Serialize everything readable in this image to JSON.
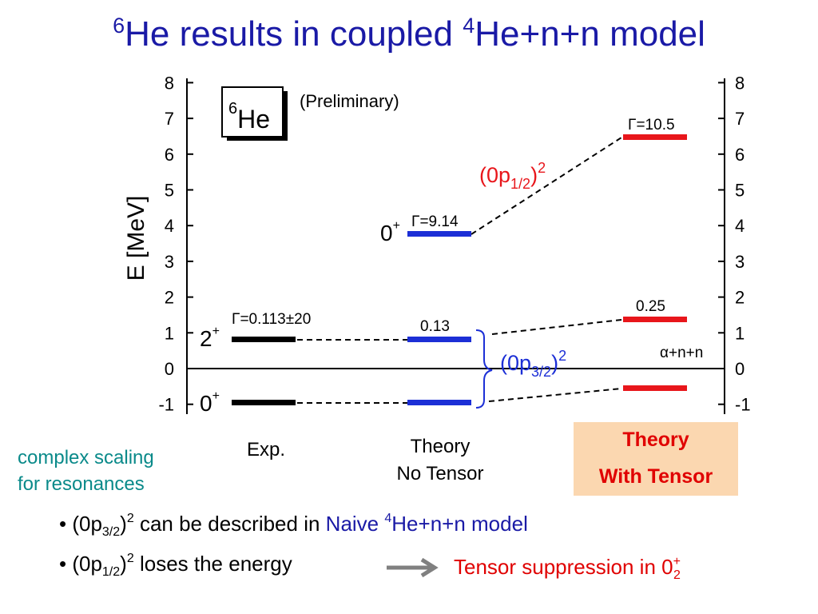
{
  "slide": {
    "title_sup_1": "6",
    "title_part_1": "He results in coupled ",
    "title_sup_2": "4",
    "title_part_2": "He+n+n model"
  },
  "axis": {
    "ylabel": "E [MeV]",
    "ticks": [
      "-1",
      "0",
      "1",
      "2",
      "3",
      "4",
      "5",
      "6",
      "7",
      "8"
    ],
    "threshold_label": "α+n+n"
  },
  "nucleus_box": {
    "mass": "6",
    "symbol": "He"
  },
  "preliminary": "(Preliminary)",
  "columns": {
    "exp": "Exp.",
    "no_tensor_1": "Theory",
    "no_tensor_2": "No Tensor",
    "with_tensor_1": "Theory",
    "with_tensor_2": "With Tensor"
  },
  "levels": {
    "exp_2plus": {
      "label": "2",
      "label_sup": "+",
      "width_label": "Γ=0.113±20"
    },
    "exp_0plus": {
      "label": "0",
      "label_sup": "+"
    },
    "nt_0plus2": {
      "label": "0",
      "label_sup": "+",
      "width_label": "Γ=9.14"
    },
    "nt_2plus": {
      "width_label": "0.13"
    },
    "wt_0plus2": {
      "width_label": "Γ=10.5"
    },
    "wt_2plus": {
      "width_label": "0.25"
    }
  },
  "annotations": {
    "p12_base": "(0p",
    "p12_sub": "1/2",
    "p12_close": ")",
    "p12_sup": "2",
    "p32_base": "(0p",
    "p32_sub": "3/2",
    "p32_close": ")",
    "p32_sup": "2"
  },
  "note": {
    "line1": "complex scaling",
    "line2": "for resonances"
  },
  "bullets": {
    "b1_pre": "• (0p",
    "b1_sub": "3/2",
    "b1_mid": ")",
    "b1_sup": "2",
    "b1_text": " can be described in ",
    "b1_blue": "Naive ",
    "b1_blue_sup": "4",
    "b1_blue_end": "He+n+n model",
    "b2_pre": "• (0p",
    "b2_sub": "1/2",
    "b2_mid": ")",
    "b2_sup": "2",
    "b2_text": " loses the energy",
    "b2_result": "Tensor suppression in 0",
    "b2_result_sup": "+",
    "b2_result_sub": "2"
  },
  "colors": {
    "title": "#1a1aa6",
    "exp": "#000000",
    "no_tensor": "#1c2fd6",
    "with_tensor": "#e8161b",
    "note": "#0a8a8a",
    "box_bg": "#fbd7b0"
  },
  "chart_data": {
    "type": "level-scheme",
    "ylabel": "E [MeV]",
    "ylim": [
      -1.3,
      8.2
    ],
    "threshold_energy": 0,
    "columns": [
      "Exp.",
      "Theory No Tensor",
      "Theory With Tensor"
    ],
    "levels": [
      {
        "column": "Exp.",
        "state": "2+",
        "energy": 0.9,
        "width": "Γ=0.113±20"
      },
      {
        "column": "Exp.",
        "state": "0+",
        "energy": -0.97
      },
      {
        "column": "Theory No Tensor",
        "state": "0+",
        "energy": 3.75,
        "width": "Γ=9.14"
      },
      {
        "column": "Theory No Tensor",
        "state": "2+",
        "energy": 0.82,
        "width": "0.13"
      },
      {
        "column": "Theory No Tensor",
        "state": "0+",
        "energy": -0.97
      },
      {
        "column": "Theory With Tensor",
        "state": "0+",
        "energy": 6.5,
        "width": "Γ=10.5"
      },
      {
        "column": "Theory With Tensor",
        "state": "2+",
        "energy": 1.35,
        "width": "0.25"
      },
      {
        "column": "Theory With Tensor",
        "state": "0+",
        "energy": -0.55
      }
    ]
  }
}
